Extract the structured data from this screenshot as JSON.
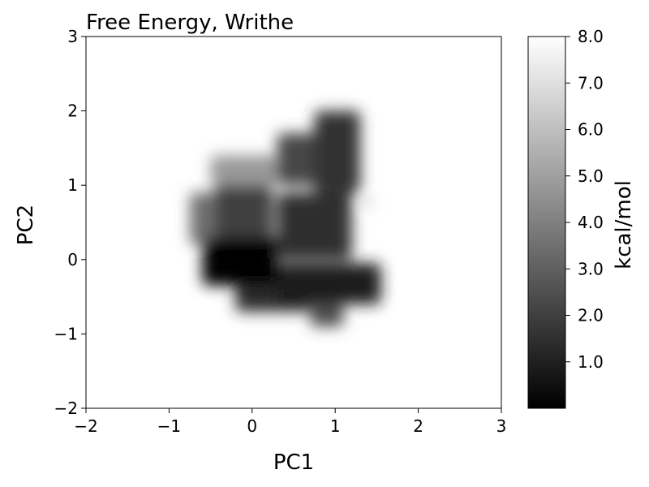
{
  "chart_data": {
    "type": "heatmap",
    "title": "Free Energy, Writhe",
    "xlabel": "PC1",
    "ylabel": "PC2",
    "xlim": [
      -2,
      3
    ],
    "ylim": [
      -2,
      3
    ],
    "x_ticks": [
      {
        "value": -2,
        "label": "−2"
      },
      {
        "value": -1,
        "label": "−1"
      },
      {
        "value": 0,
        "label": "0"
      },
      {
        "value": 1,
        "label": "1"
      },
      {
        "value": 2,
        "label": "2"
      },
      {
        "value": 3,
        "label": "3"
      }
    ],
    "y_ticks": [
      {
        "value": -2,
        "label": "−2"
      },
      {
        "value": -1,
        "label": "−1"
      },
      {
        "value": 0,
        "label": "0"
      },
      {
        "value": 1,
        "label": "1"
      },
      {
        "value": 2,
        "label": "2"
      },
      {
        "value": 3,
        "label": "3"
      }
    ],
    "colorbar": {
      "label": "kcal/mol",
      "range": [
        0,
        8
      ],
      "ticks": [
        {
          "value": 1,
          "label": "1.0"
        },
        {
          "value": 2,
          "label": "2.0"
        },
        {
          "value": 3,
          "label": "3.0"
        },
        {
          "value": 4,
          "label": "4.0"
        },
        {
          "value": 5,
          "label": "5.0"
        },
        {
          "value": 6,
          "label": "6.0"
        },
        {
          "value": 7,
          "label": "7.0"
        },
        {
          "value": 8,
          "label": "8.0"
        }
      ],
      "colormap": "gray",
      "low_color": "#000000",
      "high_color": "#ffffff"
    },
    "grid": false,
    "regions": [
      {
        "x": [
          0.75,
          1.3
        ],
        "y": [
          0.9,
          2.0
        ],
        "energy": 1.6
      },
      {
        "x": [
          0.3,
          0.8
        ],
        "y": [
          1.0,
          1.7
        ],
        "energy": 2.2
      },
      {
        "x": [
          -0.5,
          0.3
        ],
        "y": [
          1.0,
          1.4
        ],
        "energy": 4.8
      },
      {
        "x": [
          -0.75,
          -0.4
        ],
        "y": [
          0.2,
          0.9
        ],
        "energy": 3.5
      },
      {
        "x": [
          -0.45,
          0.25
        ],
        "y": [
          0.3,
          1.0
        ],
        "energy": 2.0
      },
      {
        "x": [
          0.3,
          1.2
        ],
        "y": [
          0.0,
          0.9
        ],
        "energy": 1.4
      },
      {
        "x": [
          -0.6,
          0.3
        ],
        "y": [
          -0.35,
          0.3
        ],
        "energy": 0.0
      },
      {
        "x": [
          0.3,
          1.55
        ],
        "y": [
          -0.6,
          -0.05
        ],
        "energy": 0.8
      },
      {
        "x": [
          -0.2,
          0.7
        ],
        "y": [
          -0.7,
          -0.3
        ],
        "energy": 1.3
      },
      {
        "x": [
          0.7,
          1.1
        ],
        "y": [
          -0.9,
          -0.6
        ],
        "energy": 2.4
      },
      {
        "x": [
          1.3,
          1.45
        ],
        "y": [
          0.72,
          0.82
        ],
        "energy": 6.0
      }
    ]
  }
}
